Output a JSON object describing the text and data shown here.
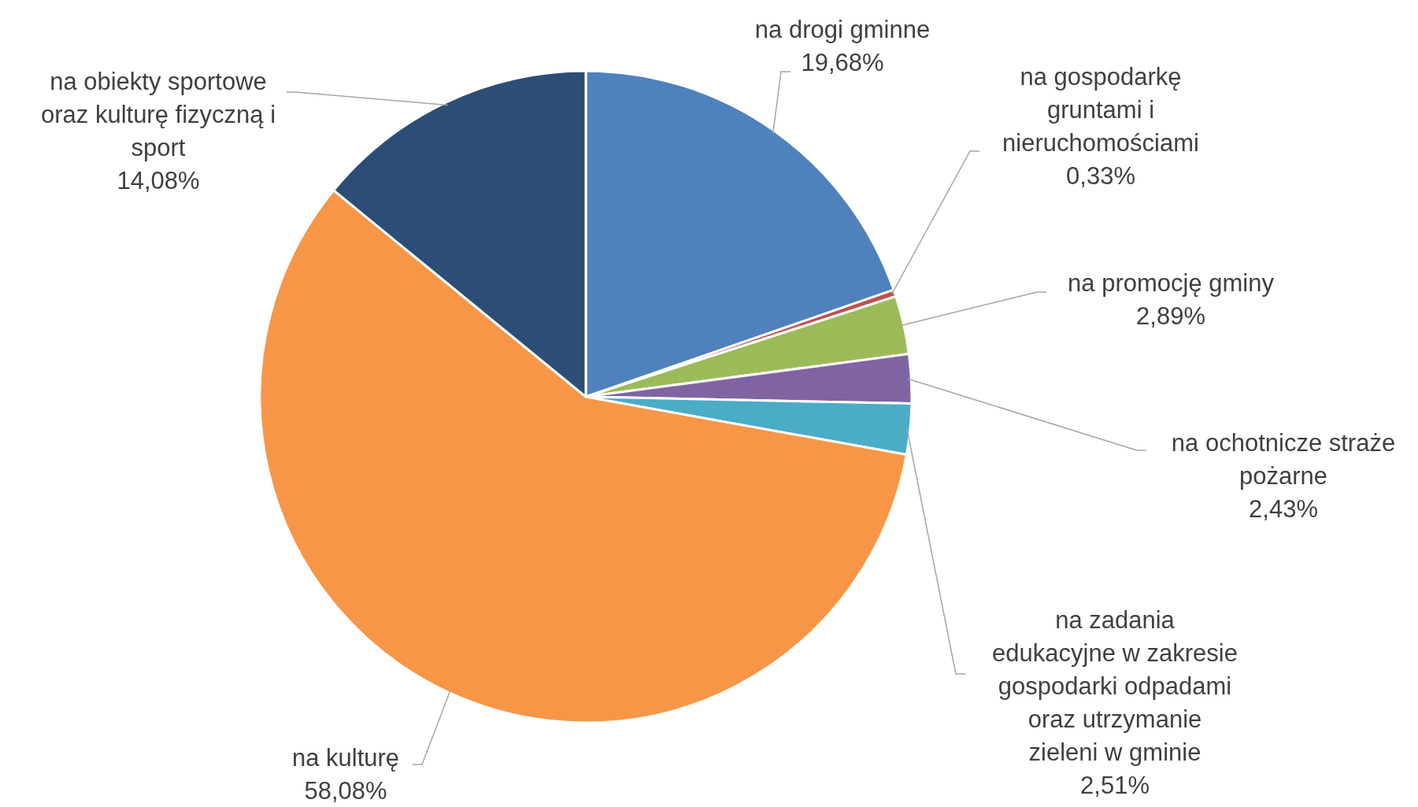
{
  "chart_data": {
    "type": "pie",
    "categories": [
      "na drogi gminne",
      "na gospodarkę gruntami i nieruchomościami",
      "na promocję gminy",
      "na ochotnicze straże pożarne",
      "na zadania edukacyjne w zakresie gospodarki odpadami oraz utrzymanie zieleni w gminie",
      "na kulturę",
      "na obiekty sportowe oraz kulturę fizyczną i sport"
    ],
    "values": [
      19.68,
      0.33,
      2.89,
      2.43,
      2.51,
      58.08,
      14.08
    ],
    "value_labels": [
      "19,68%",
      "0,33%",
      "2,89%",
      "2,43%",
      "2,51%",
      "58,08%",
      "14,08%"
    ],
    "colors": [
      "#4f81bd",
      "#c0504d",
      "#9bbb59",
      "#8064a2",
      "#4bacc6",
      "#f79646",
      "#2c4d75"
    ]
  }
}
